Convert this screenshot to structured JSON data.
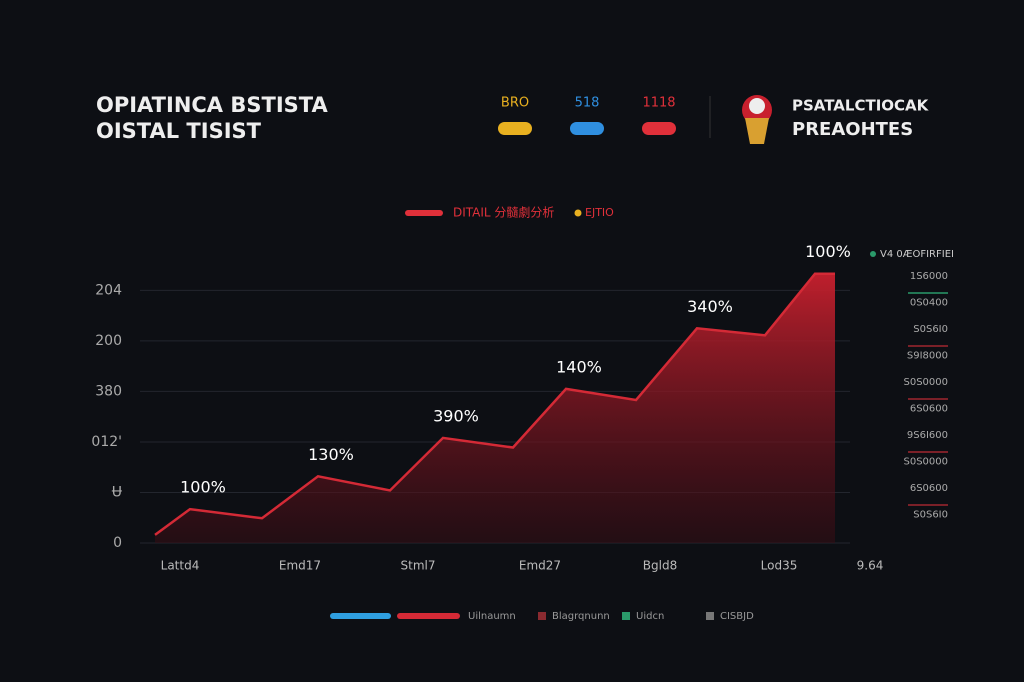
{
  "header": {
    "title_lines": [
      "OPIATINCA BSTISTA",
      "OISTAL TISIST"
    ],
    "stats": [
      {
        "value": "BRO",
        "color": "#e8b020"
      },
      {
        "value": "518",
        "color": "#2f8fe0"
      },
      {
        "value": "1118",
        "color": "#e0303a"
      }
    ],
    "brand_lines": [
      "PSATALCTIOCAK",
      "PREAOHTES"
    ]
  },
  "chart_data": {
    "type": "area",
    "legend": [
      {
        "name": "DITAIL 分髓劇分析",
        "color": "#e0303a"
      },
      {
        "name": "EJTIO",
        "color": "#e8b020"
      }
    ],
    "x": [
      0.7,
      1.4,
      2.84,
      3.96,
      5.4,
      6.46,
      7.86,
      8.92,
      10.32,
      11.54,
      12.9,
      13.9,
      14.3
    ],
    "series": [
      {
        "name": "Uilnaumn",
        "color": "#d42a36",
        "values": [
          0.16,
          0.67,
          0.49,
          1.32,
          1.04,
          2.08,
          1.89,
          3.05,
          2.83,
          4.25,
          4.11,
          5.33,
          5.33
        ]
      }
    ],
    "annotations": [
      "100%",
      "130%",
      "390%",
      "140%",
      "340%",
      "100%"
    ],
    "xlim": [
      0,
      15.5
    ],
    "xticks": [
      {
        "value": 1.2,
        "label": "Lattd4"
      },
      {
        "value": 3.6,
        "label": "Emd17"
      },
      {
        "value": 5.96,
        "label": "Stml7"
      },
      {
        "value": 8.4,
        "label": "Emd27"
      },
      {
        "value": 10.8,
        "label": "Bgld8"
      },
      {
        "value": 13.18,
        "label": "Lod35"
      },
      {
        "value": 15,
        "label": "9.64"
      }
    ],
    "ylim": [
      0,
      5.7
    ],
    "yticks": [
      {
        "value": 0,
        "label": "0"
      },
      {
        "value": 1,
        "label": "Ʉ"
      },
      {
        "value": 2,
        "label": "012'"
      },
      {
        "value": 3,
        "label": "380"
      },
      {
        "value": 4,
        "label": "200"
      },
      {
        "value": 5,
        "label": "204"
      }
    ],
    "grid": true,
    "side_legend": {
      "title": "V4 0ÆOFIRFIEI",
      "items": [
        "1S6000",
        "0S0400",
        "S0S6I0",
        "S9I8000",
        "S0S0000",
        "6S0600",
        "9S6I600",
        "S0S0000",
        "6S0600",
        "S0S6I0"
      ]
    },
    "bottom_legend": [
      {
        "name": "Uilnaumn",
        "color": "#d42a36"
      },
      {
        "name": "Blagrqnunn",
        "color": "#8a2a30"
      },
      {
        "name": "Uidcn",
        "color": "#2a9a6a"
      },
      {
        "name": "CISBJD",
        "color": "#777"
      }
    ]
  }
}
